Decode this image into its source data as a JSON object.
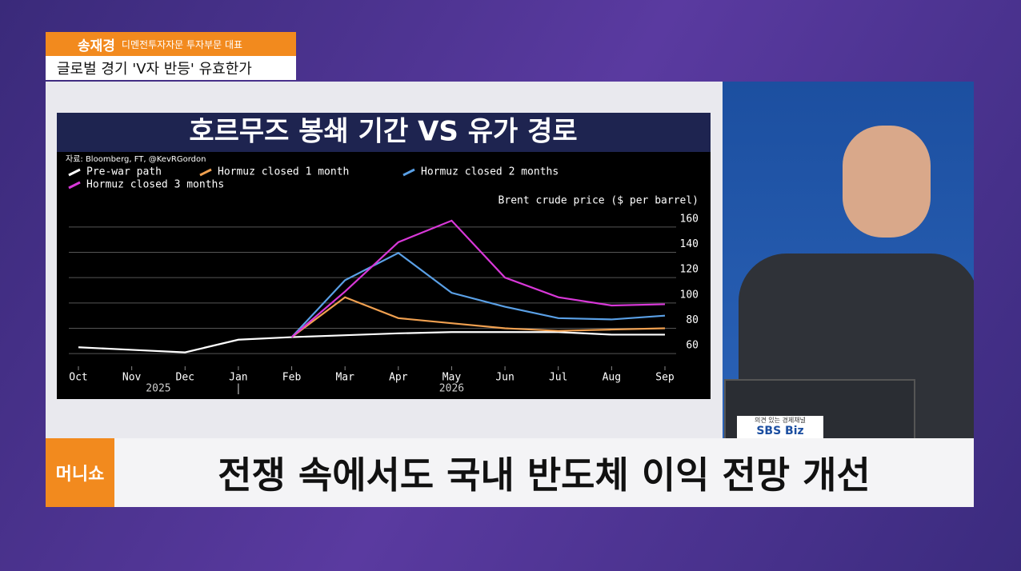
{
  "header": {
    "name": "송재경",
    "affiliation": "디멘전투자자문 투자부문 대표",
    "topic": "글로벌 경기 'V자 반등' 유효한가"
  },
  "chart_data": {
    "type": "line",
    "title": "호르무즈 봉쇄 기간 VS 유가 경로",
    "source": "자료: Bloomberg, FT, @KevRGordon",
    "y_label": "Brent crude price ($ per barrel)",
    "categories": [
      "Oct",
      "Nov",
      "Dec",
      "Jan",
      "Feb",
      "Mar",
      "Apr",
      "May",
      "Jun",
      "Jul",
      "Aug",
      "Sep"
    ],
    "year_labels": [
      "2025",
      "2026"
    ],
    "year_separator": "|",
    "series": [
      {
        "name": "Pre-war path",
        "color": "#ffffff",
        "values": [
          65,
          63,
          61,
          71,
          73,
          74.5,
          76,
          77,
          77,
          77,
          75,
          75
        ]
      },
      {
        "name": "Hormuz closed 1 month",
        "color": "#f0a050",
        "values": [
          null,
          null,
          null,
          null,
          73,
          104.5,
          88,
          84,
          80,
          78,
          79,
          80
        ]
      },
      {
        "name": "Hormuz closed 2 months",
        "color": "#5aa0e6",
        "values": [
          null,
          null,
          null,
          null,
          73,
          118,
          139.5,
          108,
          97,
          88,
          87,
          90
        ]
      },
      {
        "name": "Hormuz closed 3 months",
        "color": "#d838d8",
        "values": [
          null,
          null,
          null,
          null,
          73,
          109,
          148,
          165,
          120,
          104.5,
          98,
          99
        ]
      }
    ],
    "ylim": [
      50,
      170
    ],
    "yticks": [
      60,
      80,
      100,
      120,
      140,
      160
    ],
    "grid": true
  },
  "studio": {
    "logo_tagline": "의견 있는 경제채널",
    "logo": "SBS Biz"
  },
  "banner": {
    "program": "머니쇼",
    "headline": "전쟁 속에서도 국내 반도체 이익 전망 개선"
  }
}
